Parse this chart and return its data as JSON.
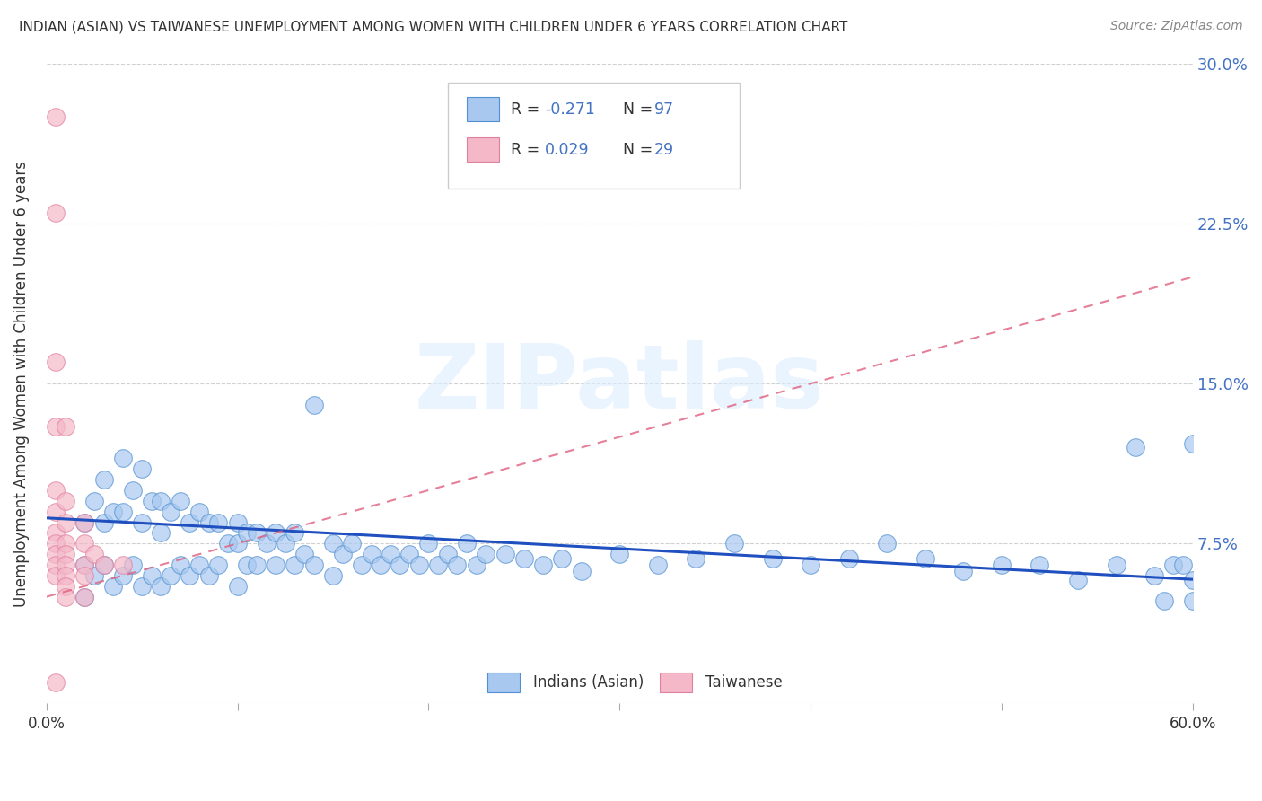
{
  "title": "INDIAN (ASIAN) VS TAIWANESE UNEMPLOYMENT AMONG WOMEN WITH CHILDREN UNDER 6 YEARS CORRELATION CHART",
  "source": "Source: ZipAtlas.com",
  "ylabel": "Unemployment Among Women with Children Under 6 years",
  "xlim": [
    0.0,
    0.6
  ],
  "ylim": [
    0.0,
    0.3
  ],
  "xticks": [
    0.0,
    0.1,
    0.2,
    0.3,
    0.4,
    0.5,
    0.6
  ],
  "yticks_right": [
    0.0,
    0.075,
    0.15,
    0.225,
    0.3
  ],
  "ytick_right_labels": [
    "",
    "7.5%",
    "15.0%",
    "22.5%",
    "30.0%"
  ],
  "legend_label1": "Indians (Asian)",
  "legend_label2": "Taiwanese",
  "color_indian": "#a8c8f0",
  "color_taiwanese": "#f4b8c8",
  "color_indian_edge": "#5090d0",
  "color_taiwanese_edge": "#e080a0",
  "color_trendline_indian": "#2050c0",
  "color_trendline_taiwanese": "#e06080",
  "color_title": "#333333",
  "color_source": "#888888",
  "color_axis_right": "#4472c4",
  "color_legend_text": "#4472c4",
  "watermark_text": "ZIPatlas",
  "watermark_color": "#ddeeff",
  "indian_x": [
    0.02,
    0.02,
    0.02,
    0.025,
    0.025,
    0.03,
    0.03,
    0.03,
    0.035,
    0.035,
    0.04,
    0.04,
    0.04,
    0.045,
    0.045,
    0.05,
    0.05,
    0.05,
    0.055,
    0.055,
    0.06,
    0.06,
    0.06,
    0.065,
    0.065,
    0.07,
    0.07,
    0.075,
    0.075,
    0.08,
    0.08,
    0.085,
    0.085,
    0.09,
    0.09,
    0.095,
    0.1,
    0.1,
    0.1,
    0.105,
    0.105,
    0.11,
    0.11,
    0.115,
    0.12,
    0.12,
    0.125,
    0.13,
    0.13,
    0.135,
    0.14,
    0.14,
    0.15,
    0.15,
    0.155,
    0.16,
    0.165,
    0.17,
    0.175,
    0.18,
    0.185,
    0.19,
    0.195,
    0.2,
    0.205,
    0.21,
    0.215,
    0.22,
    0.225,
    0.23,
    0.24,
    0.25,
    0.26,
    0.27,
    0.28,
    0.3,
    0.32,
    0.34,
    0.36,
    0.38,
    0.4,
    0.42,
    0.44,
    0.46,
    0.48,
    0.5,
    0.52,
    0.54,
    0.56,
    0.57,
    0.58,
    0.585,
    0.59,
    0.595,
    0.6,
    0.6,
    0.6
  ],
  "indian_y": [
    0.085,
    0.065,
    0.05,
    0.095,
    0.06,
    0.105,
    0.085,
    0.065,
    0.09,
    0.055,
    0.115,
    0.09,
    0.06,
    0.1,
    0.065,
    0.11,
    0.085,
    0.055,
    0.095,
    0.06,
    0.095,
    0.08,
    0.055,
    0.09,
    0.06,
    0.095,
    0.065,
    0.085,
    0.06,
    0.09,
    0.065,
    0.085,
    0.06,
    0.085,
    0.065,
    0.075,
    0.085,
    0.075,
    0.055,
    0.08,
    0.065,
    0.08,
    0.065,
    0.075,
    0.08,
    0.065,
    0.075,
    0.08,
    0.065,
    0.07,
    0.14,
    0.065,
    0.075,
    0.06,
    0.07,
    0.075,
    0.065,
    0.07,
    0.065,
    0.07,
    0.065,
    0.07,
    0.065,
    0.075,
    0.065,
    0.07,
    0.065,
    0.075,
    0.065,
    0.07,
    0.07,
    0.068,
    0.065,
    0.068,
    0.062,
    0.07,
    0.065,
    0.068,
    0.075,
    0.068,
    0.065,
    0.068,
    0.075,
    0.068,
    0.062,
    0.065,
    0.065,
    0.058,
    0.065,
    0.12,
    0.06,
    0.048,
    0.065,
    0.065,
    0.122,
    0.058,
    0.048
  ],
  "taiwanese_x": [
    0.005,
    0.005,
    0.005,
    0.005,
    0.005,
    0.005,
    0.005,
    0.005,
    0.005,
    0.005,
    0.005,
    0.005,
    0.01,
    0.01,
    0.01,
    0.01,
    0.01,
    0.01,
    0.01,
    0.01,
    0.01,
    0.02,
    0.02,
    0.02,
    0.02,
    0.02,
    0.025,
    0.03,
    0.04
  ],
  "taiwanese_y": [
    0.275,
    0.23,
    0.16,
    0.13,
    0.1,
    0.09,
    0.08,
    0.075,
    0.07,
    0.065,
    0.06,
    0.01,
    0.13,
    0.095,
    0.085,
    0.075,
    0.07,
    0.065,
    0.06,
    0.055,
    0.05,
    0.085,
    0.075,
    0.065,
    0.06,
    0.05,
    0.07,
    0.065,
    0.065
  ],
  "background_color": "#ffffff",
  "grid_color": "#cccccc"
}
